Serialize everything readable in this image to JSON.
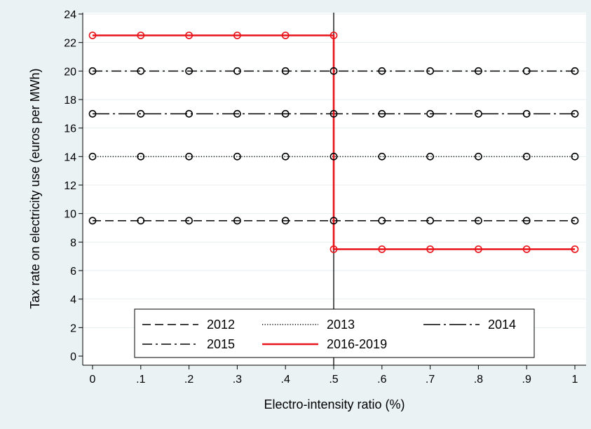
{
  "chart_data": {
    "type": "line",
    "xlabel": "Electro-intensity ratio (%)",
    "ylabel": "Tax rate on electricity use (euros per MWh)",
    "xlim": [
      0,
      1
    ],
    "ylim": [
      0,
      24
    ],
    "x_ticks": [
      "0",
      ".1",
      ".2",
      ".3",
      ".4",
      ".5",
      ".6",
      ".7",
      ".8",
      ".9",
      "1"
    ],
    "y_ticks": [
      "0",
      "2",
      "4",
      "6",
      "8",
      "10",
      "12",
      "14",
      "16",
      "18",
      "20",
      "22",
      "24"
    ],
    "grid": true,
    "legend_position": "bottom-inside",
    "reference_line_x": 0.5,
    "x": [
      0,
      0.1,
      0.2,
      0.3,
      0.4,
      0.5,
      0.6,
      0.7,
      0.8,
      0.9,
      1
    ],
    "series": [
      {
        "name": "2012",
        "values": [
          9.5,
          9.5,
          9.5,
          9.5,
          9.5,
          9.5,
          9.5,
          9.5,
          9.5,
          9.5,
          9.5
        ],
        "color": "#000000",
        "dash": "dashed"
      },
      {
        "name": "2013",
        "values": [
          14,
          14,
          14,
          14,
          14,
          14,
          14,
          14,
          14,
          14,
          14
        ],
        "color": "#000000",
        "dash": "dotted"
      },
      {
        "name": "2014",
        "values": [
          17,
          17,
          17,
          17,
          17,
          17,
          17,
          17,
          17,
          17,
          17
        ],
        "color": "#000000",
        "dash": "longdash-dot"
      },
      {
        "name": "2015",
        "values": [
          20,
          20,
          20,
          20,
          20,
          20,
          20,
          20,
          20,
          20,
          20
        ],
        "color": "#000000",
        "dash": "dash-dot"
      },
      {
        "name": "2016-2019",
        "values": [
          22.5,
          22.5,
          22.5,
          22.5,
          22.5,
          22.5,
          7.5,
          7.5,
          7.5,
          7.5,
          7.5
        ],
        "step_at": 0.5,
        "step_low": 7.5,
        "color": "#e8141b",
        "dash": "solid"
      }
    ]
  }
}
